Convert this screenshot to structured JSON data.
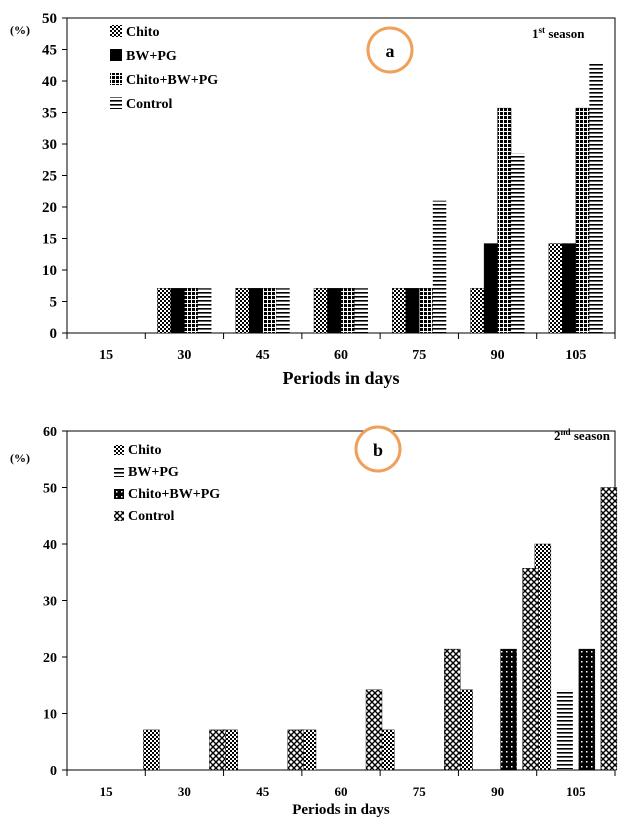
{
  "chart_data": [
    {
      "type": "bar",
      "panel_letter": "a",
      "season_label": "1",
      "season_sup": "st",
      "season_suffix": "  season",
      "ylabel": "(%)",
      "xlabel": "Periods in days",
      "ylim": [
        0,
        50
      ],
      "yticks": [
        0,
        5,
        10,
        15,
        20,
        25,
        30,
        35,
        40,
        45,
        50
      ],
      "categories": [
        "15",
        "30",
        "45",
        "60",
        "75",
        "90",
        "105"
      ],
      "legend_position": "top-left",
      "grid": false,
      "series": [
        {
          "name": "Chito",
          "pattern": "dots",
          "values": [
            0,
            7.1,
            7.1,
            7.1,
            7.1,
            7.1,
            14.2
          ]
        },
        {
          "name": "BW+PG",
          "pattern": "solid",
          "values": [
            0,
            7.1,
            7.1,
            7.1,
            7.1,
            14.2,
            14.2
          ]
        },
        {
          "name": "Chito+BW+PG",
          "pattern": "checker",
          "values": [
            0,
            7.1,
            7.1,
            7.1,
            7.1,
            35.7,
            35.7
          ]
        },
        {
          "name": "Control",
          "pattern": "hlines",
          "values": [
            0,
            7.1,
            7.1,
            7.1,
            21,
            28.5,
            42.8
          ]
        }
      ]
    },
    {
      "type": "bar",
      "panel_letter": "b",
      "season_label": "2",
      "season_sup": "nd",
      "season_suffix": " season",
      "ylabel": "(%)",
      "xlabel": "Periods in days",
      "ylim": [
        0,
        60
      ],
      "yticks": [
        0,
        10,
        20,
        30,
        40,
        50,
        60
      ],
      "categories": [
        "15",
        "30",
        "45",
        "60",
        "75",
        "90",
        "105"
      ],
      "legend_position": "top-left",
      "grid": false,
      "series": [
        {
          "name": "Chito",
          "pattern": "dots",
          "values": [
            0,
            7.1,
            7.1,
            7.1,
            7.1,
            14.2,
            40
          ]
        },
        {
          "name": "BW+PG",
          "pattern": "hlines",
          "values": [
            0,
            0,
            0,
            0,
            0,
            0,
            14.2
          ]
        },
        {
          "name": "Chito+BW+PG",
          "pattern": "solid-dots",
          "values": [
            0,
            0,
            0,
            0,
            0,
            21.4,
            21.4
          ]
        },
        {
          "name": "Control",
          "pattern": "cross",
          "values": [
            0,
            7.1,
            7.1,
            14.2,
            21.4,
            35.7,
            50
          ]
        }
      ]
    }
  ],
  "colors": {
    "badge_outline": "#f0a05a",
    "ink": "#000000"
  }
}
